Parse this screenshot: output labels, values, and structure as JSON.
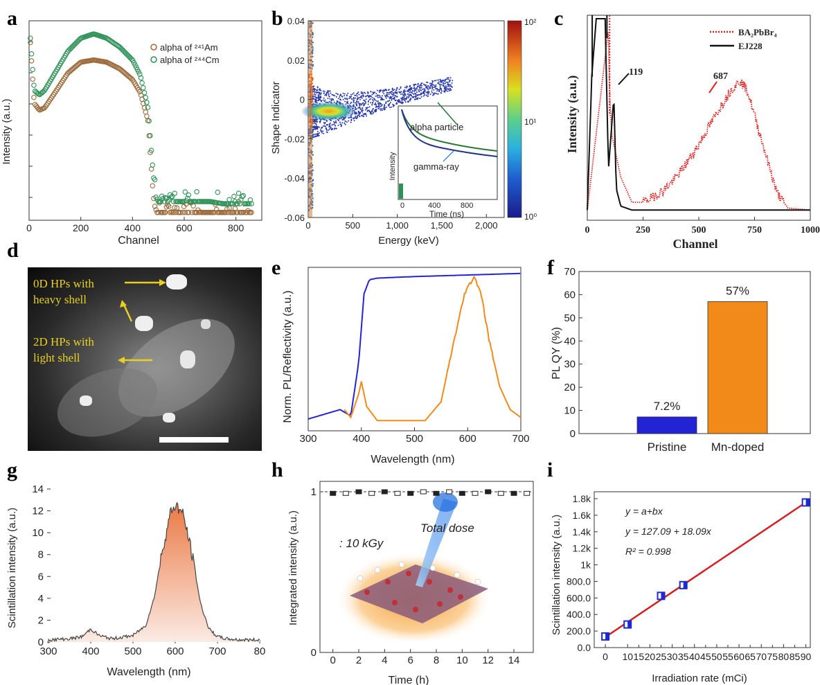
{
  "panels": {
    "a": {
      "letter": "a"
    },
    "b": {
      "letter": "b"
    },
    "c": {
      "letter": "c"
    },
    "d": {
      "letter": "d"
    },
    "e": {
      "letter": "e"
    },
    "f": {
      "letter": "f"
    },
    "g": {
      "letter": "g"
    },
    "h": {
      "letter": "h"
    },
    "i": {
      "letter": "i"
    }
  },
  "colors": {
    "am": "#9b6a3a",
    "cm": "#2e9157",
    "red": "#e02020",
    "black": "#111111",
    "blue": "#2323d6",
    "orange": "#f28a1a",
    "green_curve": "#2a7a3a",
    "navy": "#22338a",
    "fit_red": "#d42020",
    "marker_blue": "#1a2ad0"
  },
  "image_d": {
    "labels": [
      "0D HPs with",
      "heavy shell",
      "2D HPs with",
      "light shell"
    ]
  },
  "image_h": {
    "annotation_1": "Total dose",
    "annotation_2": ": 10 kGy"
  },
  "chart_data": [
    {
      "id": "a",
      "type": "scatter",
      "xlabel": "Channel",
      "ylabel": "Intensity (a.u.)",
      "xlim": [
        0,
        900
      ],
      "xticks": [
        "0",
        "200",
        "400",
        "600",
        "800"
      ],
      "series": [
        {
          "name": "alpha of ²⁴¹Am",
          "x": [
            5,
            20,
            40,
            60,
            100,
            150,
            200,
            250,
            300,
            350,
            400,
            430,
            460,
            480,
            490,
            500,
            550,
            600,
            650,
            700,
            750,
            800,
            850
          ],
          "y": [
            0.8,
            0.52,
            0.49,
            0.5,
            0.57,
            0.66,
            0.71,
            0.72,
            0.71,
            0.68,
            0.63,
            0.57,
            0.44,
            0.1,
            0.02,
            0.02,
            0.02,
            0.02,
            0.02,
            0.02,
            0.02,
            0.02,
            0.02
          ]
        },
        {
          "name": "alpha of ²⁴⁴Cm",
          "x": [
            5,
            20,
            40,
            60,
            100,
            150,
            200,
            250,
            300,
            350,
            400,
            430,
            460,
            480,
            490,
            500,
            550,
            600,
            650,
            700,
            750,
            800,
            850
          ],
          "y": [
            0.82,
            0.58,
            0.56,
            0.58,
            0.66,
            0.76,
            0.82,
            0.84,
            0.82,
            0.78,
            0.72,
            0.65,
            0.5,
            0.2,
            0.09,
            0.07,
            0.07,
            0.07,
            0.07,
            0.07,
            0.06,
            0.06,
            0.06
          ]
        }
      ]
    },
    {
      "id": "b",
      "type": "heatmap",
      "xlabel": "Energy (keV)",
      "ylabel": "Shape Indicator",
      "xlim": [
        0,
        2200
      ],
      "ylim": [
        -0.06,
        0.04
      ],
      "xticks": [
        "0",
        "500",
        "1,000",
        "1,500",
        "2,000"
      ],
      "yticks": [
        "-0.06",
        "-0.04",
        "-0.02",
        "0",
        "0.02",
        "0.04"
      ],
      "colorbar": {
        "labels": [
          "10⁰",
          "10¹",
          "10²"
        ],
        "scale": "log"
      },
      "inset": {
        "xlabel": "Time (ns)",
        "ylabel": "Intensity",
        "xticks": [
          "0",
          "400",
          "800"
        ],
        "annotations": [
          "alpha particle",
          "gamma-ray"
        ]
      }
    },
    {
      "id": "c",
      "type": "line",
      "xlabel": "Channel",
      "ylabel": "Intensity (a.u.)",
      "xlim": [
        0,
        1000
      ],
      "xticks": [
        "0",
        "250",
        "500",
        "750",
        "1000"
      ],
      "series": [
        {
          "name": "BA₂PbBr₄",
          "peak_label": "687",
          "x": [
            0,
            95,
            100,
            110,
            150,
            200,
            250,
            300,
            350,
            400,
            450,
            500,
            550,
            600,
            650,
            687,
            720,
            750,
            800,
            850,
            900,
            1000
          ],
          "y": [
            0.01,
            0.95,
            0.6,
            0.4,
            0.18,
            0.05,
            0.05,
            0.08,
            0.12,
            0.18,
            0.26,
            0.35,
            0.45,
            0.55,
            0.64,
            0.68,
            0.62,
            0.5,
            0.3,
            0.1,
            0.02,
            0.01
          ]
        },
        {
          "name": "EJ228",
          "peak_label": "119",
          "x": [
            0,
            20,
            40,
            80,
            95,
            119,
            130,
            150,
            200,
            400,
            600,
            800,
            1000
          ],
          "y": [
            0.01,
            0.7,
            1.0,
            1.0,
            0.22,
            0.6,
            0.12,
            0.03,
            0.01,
            0.01,
            0.01,
            0.01,
            0.01
          ]
        }
      ]
    },
    {
      "id": "e",
      "type": "line",
      "xlabel": "Wavelength (nm)",
      "ylabel": "Norm. PL/Reflectivity (a.u.)",
      "xlim": [
        300,
        700
      ],
      "xticks": [
        "300",
        "400",
        "500",
        "600",
        "700"
      ],
      "series": [
        {
          "name": "",
          "x": [
            300,
            330,
            360,
            380,
            395,
            405,
            415,
            430,
            500,
            600,
            700
          ],
          "y": [
            0.04,
            0.07,
            0.1,
            0.06,
            0.4,
            0.84,
            0.93,
            0.94,
            0.95,
            0.96,
            0.97
          ]
        },
        {
          "name": "",
          "x": [
            368,
            380,
            395,
            400,
            410,
            430,
            470,
            520,
            550,
            575,
            595,
            612,
            625,
            640,
            660,
            680,
            700
          ],
          "y": [
            0.1,
            0.05,
            0.2,
            0.28,
            0.12,
            0.03,
            0.03,
            0.03,
            0.15,
            0.55,
            0.85,
            0.95,
            0.85,
            0.55,
            0.25,
            0.1,
            0.05
          ]
        }
      ]
    },
    {
      "id": "f",
      "type": "bar",
      "ylabel": "PL QY (%)",
      "ylim": [
        0,
        70
      ],
      "yticks": [
        "0",
        "10",
        "20",
        "30",
        "40",
        "50",
        "60",
        "70"
      ],
      "categories": [
        "Pristine",
        "Mn-doped"
      ],
      "values": [
        7.2,
        57
      ],
      "data_labels": [
        "7.2%",
        "57%"
      ]
    },
    {
      "id": "g",
      "type": "area",
      "xlabel": "Wavelength (nm)",
      "ylabel": "Scintillation intensity (a.u.)",
      "xlim": [
        300,
        800
      ],
      "ylim": [
        0,
        14
      ],
      "xticks": [
        "300",
        "400",
        "500",
        "600",
        "700",
        "80"
      ],
      "yticks": [
        "0",
        "2",
        "4",
        "6",
        "8",
        "10",
        "12",
        "14"
      ],
      "x": [
        300,
        350,
        380,
        400,
        420,
        450,
        500,
        530,
        550,
        570,
        590,
        600,
        610,
        620,
        640,
        660,
        680,
        700,
        720,
        750,
        780,
        800
      ],
      "y": [
        0.2,
        0.3,
        0.5,
        1.2,
        0.6,
        0.3,
        0.6,
        1.5,
        4.0,
        8.5,
        12.0,
        12.5,
        12.2,
        11.5,
        8.0,
        3.5,
        1.2,
        0.5,
        0.3,
        0.2,
        0.2,
        0.2
      ]
    },
    {
      "id": "h",
      "type": "scatter",
      "xlabel": "Time (h)",
      "ylabel": "Integrated intensity (a.u.)",
      "xlim": [
        0,
        15
      ],
      "ylim": [
        0,
        1
      ],
      "xticks": [
        "0",
        "2",
        "4",
        "6",
        "8",
        "10",
        "12",
        "14"
      ],
      "yticks": [
        "0",
        "1"
      ],
      "x": [
        0,
        1,
        2,
        3,
        4,
        5,
        6,
        7,
        8,
        9,
        10,
        11,
        12,
        13,
        14,
        15
      ],
      "y": [
        0.99,
        0.99,
        1.0,
        0.99,
        1.0,
        0.99,
        0.99,
        1.0,
        0.99,
        1.0,
        0.99,
        0.99,
        1.0,
        0.99,
        0.99,
        0.99
      ]
    },
    {
      "id": "i",
      "type": "scatter",
      "xlabel": "Irradiation rate (mCi)",
      "ylabel": "Scintillation intensity (a.u.)",
      "xlim": [
        -5,
        92
      ],
      "ylim": [
        0,
        1800
      ],
      "xticks": [
        "0",
        "10",
        "15",
        "20",
        "25",
        "30",
        "35",
        "40",
        "45",
        "50",
        "55",
        "60",
        "65",
        "70",
        "75",
        "80",
        "85",
        "90"
      ],
      "xtick_values": [
        0,
        10,
        15,
        20,
        25,
        30,
        35,
        40,
        45,
        50,
        55,
        60,
        65,
        70,
        75,
        80,
        85,
        90
      ],
      "yticks": [
        "0.0",
        "200.0",
        "400.0",
        "600.0",
        "800.0",
        "1k",
        "1.2k",
        "1.4k",
        "1.6k",
        "1.8k"
      ],
      "x": [
        0,
        10,
        25,
        35,
        90
      ],
      "y": [
        135,
        280,
        625,
        755,
        1755
      ],
      "fit": {
        "a": 127.09,
        "b": 18.09
      },
      "equations": [
        "y = a+bx",
        "y = 127.09 + 18.09x",
        "R² = 0.998"
      ]
    }
  ]
}
